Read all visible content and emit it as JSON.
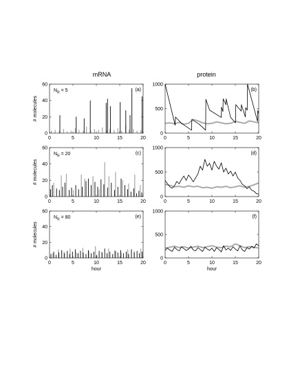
{
  "figure": {
    "columns": [
      "mRNA",
      "protein"
    ],
    "xlabel": "hour",
    "ylabel": "# molecules"
  },
  "colors": {
    "series_dark": "#000000",
    "series_light": "#aaaaaa",
    "axis": "#000000"
  },
  "chart_data": [
    {
      "type": "line",
      "panel_label": "(a)",
      "annotation_main": "N",
      "annotation_sub": "R",
      "annotation_rest": " = 5",
      "column": "mRNA",
      "xlim": [
        0,
        20
      ],
      "ylim": [
        0,
        60
      ],
      "xticks": [
        0,
        5,
        10,
        15,
        20
      ],
      "yticks": [
        0,
        20,
        40,
        60
      ],
      "series": [
        {
          "style": "spikes-light",
          "x": [
            0.4,
            1.2,
            2.1,
            3.0,
            3.8,
            4.6,
            5.5,
            6.3,
            7.2,
            7.9,
            8.8,
            9.6,
            10.5,
            11.3,
            12.2,
            12.9,
            13.8,
            14.6,
            15.4,
            16.3,
            17.0,
            17.9,
            18.7,
            19.5
          ],
          "values": [
            3,
            4,
            3,
            5,
            2,
            3,
            6,
            4,
            3,
            8,
            3,
            5,
            4,
            7,
            3,
            5,
            4,
            6,
            3,
            10,
            4,
            5,
            3,
            4
          ]
        },
        {
          "style": "spikes-dark",
          "x": [
            2.2,
            5.7,
            7.4,
            8.7,
            12.1,
            12.4,
            13.0,
            15.1,
            16.3,
            17.2,
            17.6,
            19.8
          ],
          "values": [
            22,
            20,
            18,
            40,
            37,
            42,
            33,
            38,
            28,
            22,
            55,
            45
          ]
        }
      ]
    },
    {
      "type": "line",
      "panel_label": "(b)",
      "column": "protein",
      "xlim": [
        0,
        20
      ],
      "ylim": [
        0,
        1000
      ],
      "xticks": [
        0,
        5,
        10,
        15,
        20
      ],
      "yticks": [
        0,
        500,
        1000
      ],
      "series": [
        {
          "style": "line-light",
          "x": [
            0,
            1,
            2,
            3,
            4,
            5,
            6,
            7,
            8,
            9,
            10,
            11,
            12,
            13,
            14,
            15,
            16,
            17,
            18,
            19,
            20
          ],
          "values": [
            200,
            210,
            190,
            220,
            180,
            200,
            280,
            250,
            210,
            190,
            200,
            230,
            210,
            190,
            200,
            240,
            220,
            200,
            250,
            230,
            210
          ]
        },
        {
          "style": "line-dark",
          "x": [
            0,
            2.15,
            2.2,
            3.5,
            5.65,
            5.7,
            7.3,
            8.65,
            8.7,
            9.5,
            12.0,
            12.05,
            12.35,
            12.4,
            13.0,
            13.05,
            14.0,
            15.05,
            15.1,
            16.25,
            16.3,
            17.15,
            17.2,
            17.55,
            17.6,
            19.75,
            19.8,
            20
          ],
          "values": [
            1000,
            160,
            330,
            200,
            60,
            280,
            180,
            60,
            690,
            470,
            320,
            530,
            440,
            700,
            580,
            700,
            320,
            210,
            580,
            450,
            580,
            330,
            520,
            470,
            1000,
            240,
            460,
            400
          ]
        }
      ]
    },
    {
      "type": "line",
      "panel_label": "(c)",
      "annotation_main": "N",
      "annotation_sub": "R",
      "annotation_rest": " = 20",
      "column": "mRNA",
      "xlim": [
        0,
        20
      ],
      "ylim": [
        0,
        60
      ],
      "xticks": [
        0,
        5,
        10,
        15,
        20
      ],
      "yticks": [
        0,
        20,
        40,
        60
      ],
      "series": [
        {
          "style": "spikes-light",
          "x": [
            0.9,
            2.5,
            3.6,
            5.1,
            6.8,
            7.5,
            9.3,
            10.6,
            11.8,
            12.7,
            14.1,
            15.6,
            16.9,
            18.2,
            19.4
          ],
          "values": [
            17,
            26,
            28,
            8,
            27,
            22,
            25,
            9,
            42,
            25,
            30,
            20,
            16,
            27,
            14
          ]
        },
        {
          "style": "spikes-dark",
          "x": [
            0.2,
            0.6,
            1.5,
            2.1,
            2.8,
            3.3,
            4.2,
            4.7,
            5.6,
            6.2,
            7.0,
            7.8,
            8.3,
            8.9,
            9.7,
            10.3,
            11.0,
            11.6,
            12.4,
            13.2,
            13.9,
            14.6,
            15.3,
            16.1,
            16.7,
            17.4,
            18.0,
            18.6,
            19.1,
            19.7
          ],
          "values": [
            9,
            14,
            10,
            8,
            12,
            17,
            8,
            11,
            14,
            9,
            12,
            19,
            22,
            14,
            18,
            12,
            21,
            15,
            11,
            17,
            8,
            12,
            22,
            14,
            9,
            6,
            10,
            4,
            7,
            5
          ]
        }
      ]
    },
    {
      "type": "line",
      "panel_label": "(d)",
      "column": "protein",
      "xlim": [
        0,
        20
      ],
      "ylim": [
        0,
        1000
      ],
      "xticks": [
        0,
        5,
        10,
        15,
        20
      ],
      "yticks": [
        0,
        500,
        1000
      ],
      "series": [
        {
          "style": "line-light",
          "x": [
            0,
            1,
            2,
            3,
            4,
            5,
            6,
            7,
            8,
            9,
            10,
            11,
            12,
            13,
            14,
            15,
            16,
            17,
            18,
            19,
            20
          ],
          "values": [
            250,
            230,
            200,
            210,
            190,
            220,
            200,
            210,
            180,
            190,
            170,
            200,
            190,
            210,
            180,
            200,
            220,
            190,
            210,
            240,
            280
          ]
        },
        {
          "style": "line-dark",
          "x": [
            0,
            0.5,
            1.0,
            1.5,
            2.0,
            2.5,
            3.0,
            3.5,
            4.0,
            4.5,
            5.0,
            5.5,
            6.0,
            6.5,
            7.0,
            7.5,
            8.0,
            8.5,
            9.0,
            9.5,
            10.0,
            10.5,
            11.0,
            11.5,
            12.0,
            12.5,
            13.0,
            13.5,
            14.0,
            14.5,
            15.0,
            15.5,
            16.0,
            16.5,
            17.0,
            17.5,
            18.0,
            18.5,
            19.0,
            19.5,
            20
          ],
          "values": [
            330,
            260,
            200,
            170,
            220,
            310,
            260,
            350,
            420,
            330,
            440,
            380,
            300,
            380,
            460,
            620,
            540,
            760,
            620,
            680,
            540,
            720,
            620,
            560,
            690,
            500,
            580,
            460,
            520,
            420,
            500,
            380,
            330,
            250,
            220,
            160,
            200,
            130,
            110,
            60,
            50
          ]
        }
      ]
    },
    {
      "type": "line",
      "panel_label": "(e)",
      "annotation_main": "N",
      "annotation_sub": "R",
      "annotation_rest": " = 80",
      "column": "mRNA",
      "xlim": [
        0,
        20
      ],
      "ylim": [
        0,
        60
      ],
      "xticks": [
        0,
        5,
        10,
        15,
        20
      ],
      "yticks": [
        0,
        20,
        40,
        60
      ],
      "series": [
        {
          "style": "spikes-light",
          "x": [
            0.7,
            1.9,
            3.1,
            4.4,
            5.8,
            7.1,
            8.4,
            9.8,
            11.2,
            12.6,
            13.9,
            15.3,
            16.7,
            18.1,
            19.5
          ],
          "values": [
            6,
            11,
            8,
            12,
            7,
            13,
            9,
            15,
            8,
            12,
            10,
            7,
            11,
            9,
            12
          ]
        },
        {
          "style": "spikes-dark",
          "x": [
            0.3,
            0.9,
            1.4,
            2.0,
            2.6,
            3.2,
            3.8,
            4.3,
            4.9,
            5.5,
            6.1,
            6.6,
            7.2,
            7.8,
            8.3,
            8.9,
            9.5,
            10.1,
            10.6,
            11.2,
            11.8,
            12.3,
            12.9,
            13.5,
            14.1,
            14.6,
            15.2,
            15.8,
            16.4,
            16.9,
            17.5,
            18.1,
            18.7,
            19.2,
            19.8
          ],
          "values": [
            5,
            8,
            4,
            7,
            10,
            6,
            9,
            5,
            8,
            11,
            6,
            9,
            7,
            5,
            10,
            6,
            8,
            4,
            9,
            7,
            12,
            6,
            8,
            5,
            9,
            7,
            10,
            6,
            8,
            5,
            11,
            7,
            9,
            6,
            8
          ]
        }
      ]
    },
    {
      "type": "line",
      "panel_label": "(f)",
      "column": "protein",
      "xlim": [
        0,
        20
      ],
      "ylim": [
        0,
        1000
      ],
      "xticks": [
        0,
        5,
        10,
        15,
        20
      ],
      "yticks": [
        0,
        500,
        1000
      ],
      "series": [
        {
          "style": "line-light",
          "x": [
            0,
            1,
            2,
            3,
            4,
            5,
            6,
            7,
            8,
            9,
            10,
            11,
            12,
            13,
            14,
            15,
            16,
            17,
            18,
            19,
            20
          ],
          "values": [
            210,
            230,
            250,
            220,
            240,
            210,
            230,
            250,
            220,
            240,
            260,
            230,
            220,
            250,
            240,
            300,
            260,
            220,
            240,
            230,
            210
          ]
        },
        {
          "style": "line-dark",
          "x": [
            0,
            0.5,
            1.0,
            1.5,
            2.0,
            2.5,
            3.0,
            3.5,
            4.0,
            4.5,
            5.0,
            5.5,
            6.0,
            6.5,
            7.0,
            7.5,
            8.0,
            8.5,
            9.0,
            9.5,
            10.0,
            10.5,
            11.0,
            11.5,
            12.0,
            12.5,
            13.0,
            13.5,
            14.0,
            14.5,
            15.0,
            15.5,
            16.0,
            16.5,
            17.0,
            17.5,
            18.0,
            18.5,
            19.0,
            19.5,
            20
          ],
          "values": [
            160,
            210,
            170,
            140,
            230,
            180,
            150,
            240,
            200,
            160,
            190,
            250,
            170,
            150,
            220,
            180,
            140,
            230,
            190,
            160,
            210,
            140,
            220,
            180,
            130,
            260,
            170,
            210,
            160,
            240,
            190,
            150,
            260,
            170,
            140,
            220,
            190,
            250,
            210,
            300,
            260
          ]
        }
      ]
    }
  ]
}
